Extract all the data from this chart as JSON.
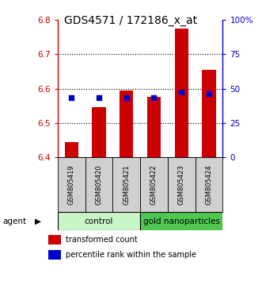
{
  "title": "GDS4571 / 172186_x_at",
  "samples": [
    "GSM805419",
    "GSM805420",
    "GSM805421",
    "GSM805422",
    "GSM805423",
    "GSM805424"
  ],
  "red_values": [
    6.445,
    6.545,
    6.595,
    6.575,
    6.775,
    6.655
  ],
  "blue_values": [
    6.573,
    6.573,
    6.573,
    6.573,
    6.59,
    6.585
  ],
  "bar_base": 6.4,
  "ylim_left": [
    6.4,
    6.8
  ],
  "ylim_right": [
    0,
    100
  ],
  "yticks_left": [
    6.4,
    6.5,
    6.6,
    6.7,
    6.8
  ],
  "yticks_right": [
    0,
    25,
    50,
    75,
    100
  ],
  "ytick_labels_right": [
    "0",
    "25",
    "50",
    "75",
    "100%"
  ],
  "grid_values": [
    6.5,
    6.6,
    6.7
  ],
  "bar_color": "#cc0000",
  "dot_color": "#0000cc",
  "title_fontsize": 10,
  "axis_color_left": "#cc0000",
  "axis_color_right": "#0000cc",
  "ctrl_color": "#c8f5c8",
  "gold_color": "#50c850",
  "grey_color": "#d0d0d0",
  "legend_items": [
    "transformed count",
    "percentile rank within the sample"
  ]
}
